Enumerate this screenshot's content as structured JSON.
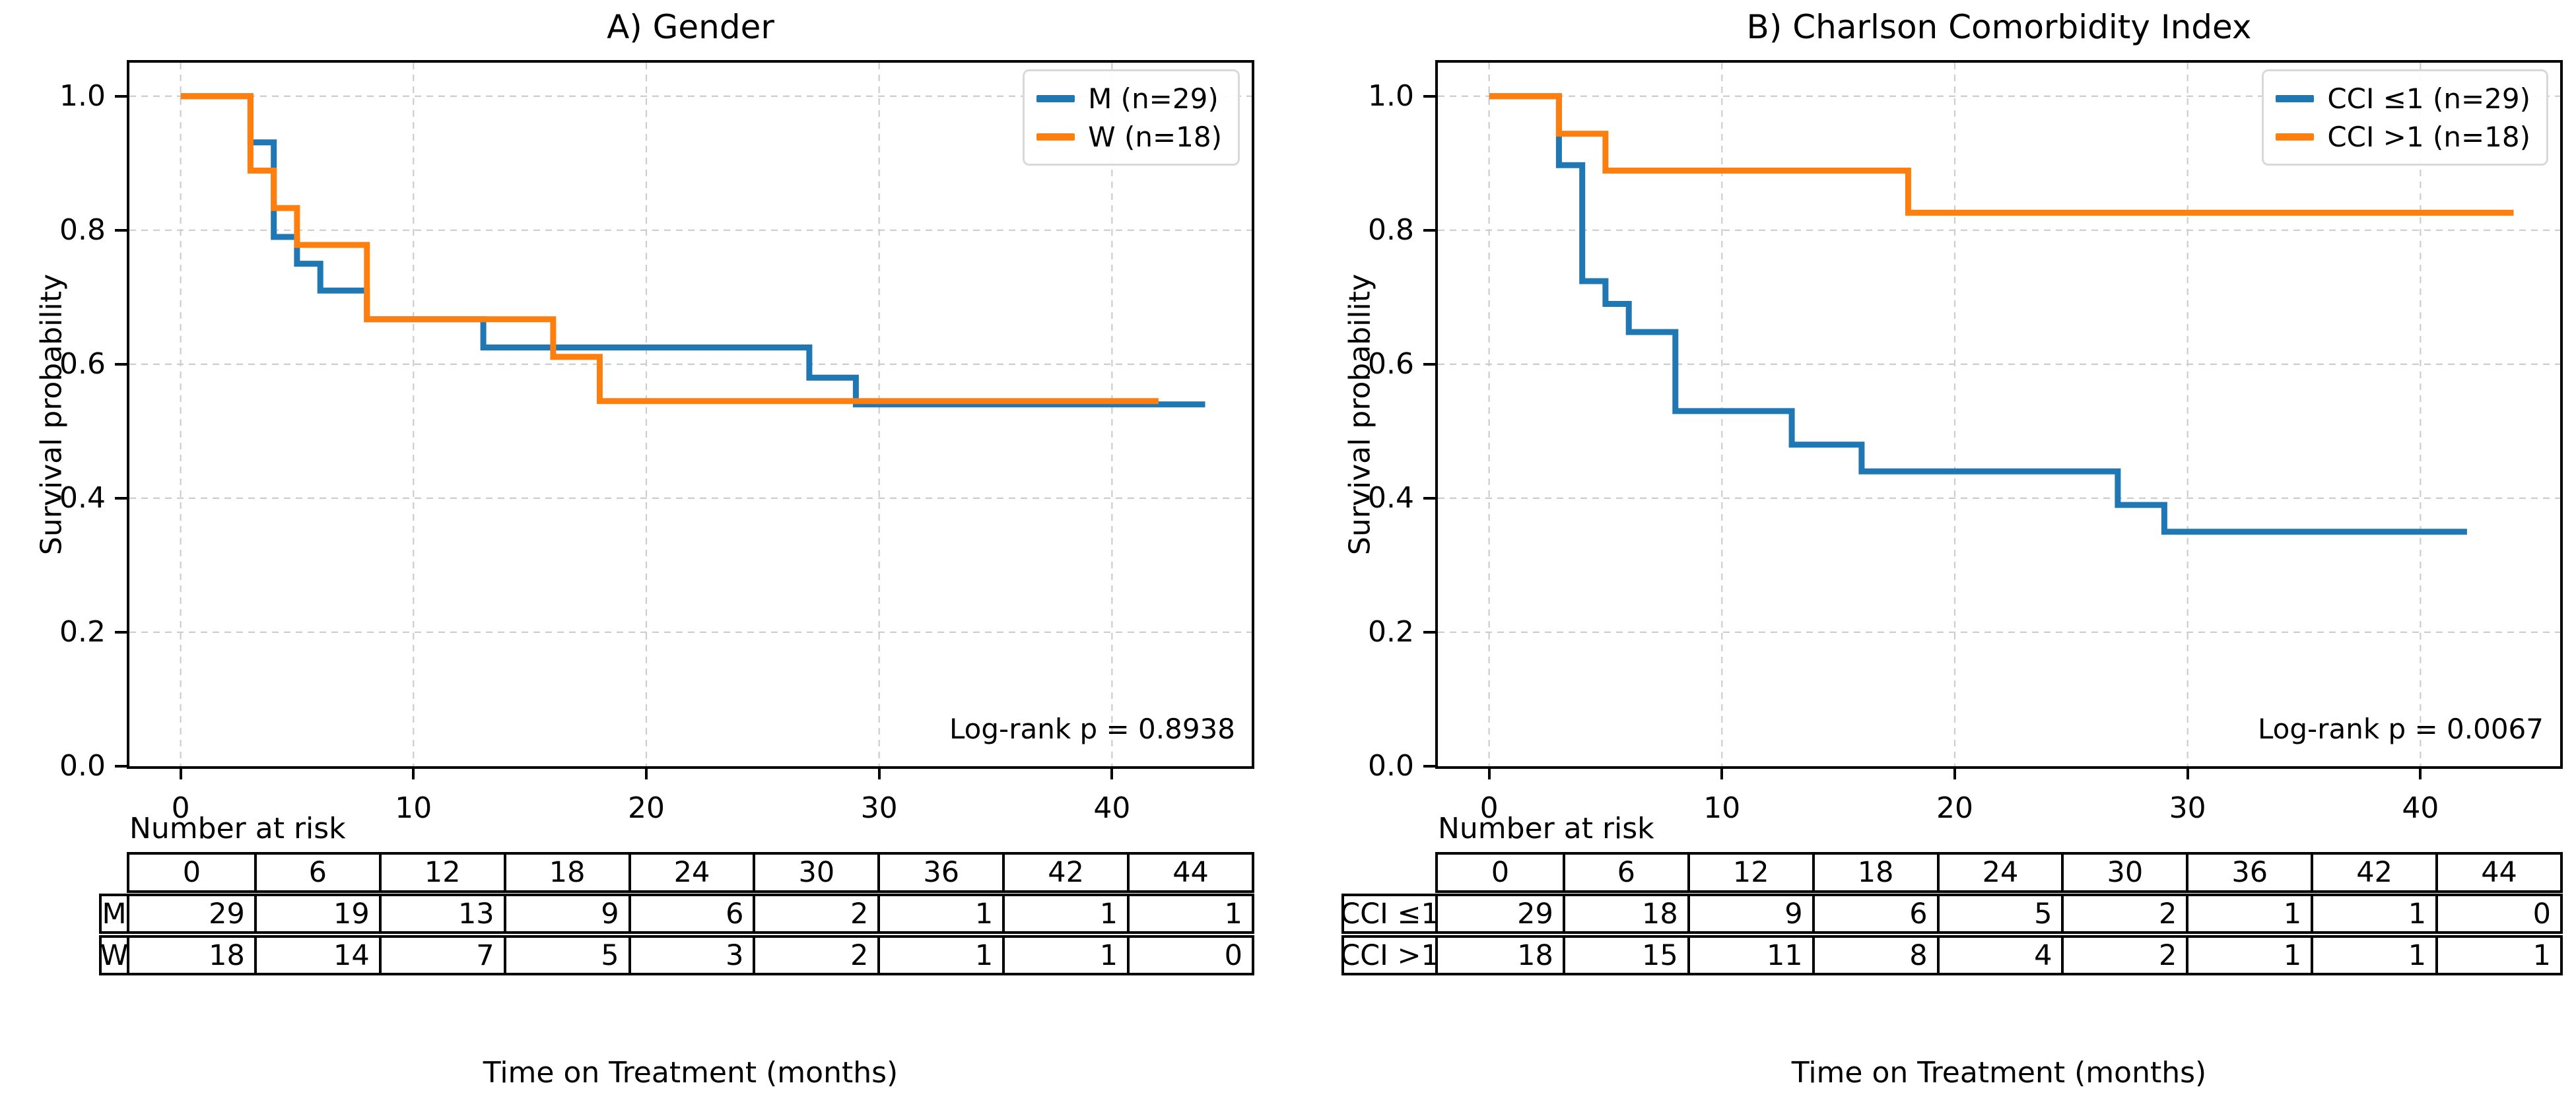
{
  "chart_data": [
    {
      "type": "line",
      "subtype": "kaplan-meier-step",
      "panel_label": "A",
      "title": "A) Gender",
      "xlabel": "Time on Treatment (months)",
      "ylabel": "Survival probability",
      "annotation": "Log-rank p = 0.8938",
      "grid": true,
      "legend_position": "upper right",
      "xlim": [
        -2.2,
        46.0
      ],
      "ylim": [
        0,
        1.05
      ],
      "x_ticks": [
        0,
        10,
        20,
        30,
        40
      ],
      "x_tick_labels": [
        "0",
        "10",
        "20",
        "30",
        "40"
      ],
      "y_ticks": [
        1.0,
        0.8,
        0.6,
        0.4,
        0.2,
        0.0
      ],
      "y_tick_labels": [
        "1.0",
        "0.8",
        "0.6",
        "0.4",
        "0.2",
        "0.0"
      ],
      "series": [
        {
          "name": "M (n=29)",
          "color": "#1f77b4",
          "steps": [
            [
              0,
              1.0
            ],
            [
              3,
              0.931
            ],
            [
              4,
              0.79
            ],
            [
              5,
              0.75
            ],
            [
              6,
              0.71
            ],
            [
              8,
              0.667
            ],
            [
              13,
              0.625
            ],
            [
              27,
              0.58
            ],
            [
              29,
              0.54
            ],
            [
              44,
              0.54
            ]
          ]
        },
        {
          "name": "W (n=18)",
          "color": "#ff7f0e",
          "steps": [
            [
              0,
              1.0
            ],
            [
              3,
              0.889
            ],
            [
              4,
              0.833
            ],
            [
              5,
              0.778
            ],
            [
              8,
              0.667
            ],
            [
              16,
              0.611
            ],
            [
              18,
              0.545
            ],
            [
              42,
              0.545
            ]
          ]
        }
      ],
      "number_at_risk": {
        "label": "Number at risk",
        "time_points": [
          "0",
          "6",
          "12",
          "18",
          "24",
          "30",
          "36",
          "42",
          "44"
        ],
        "rows": [
          {
            "label": "M",
            "counts": [
              "29",
              "19",
              "13",
              "9",
              "6",
              "2",
              "1",
              "1",
              "1"
            ]
          },
          {
            "label": "W",
            "counts": [
              "18",
              "14",
              "7",
              "5",
              "3",
              "2",
              "1",
              "1",
              "0"
            ]
          }
        ]
      }
    },
    {
      "type": "line",
      "subtype": "kaplan-meier-step",
      "panel_label": "B",
      "title": "B) Charlson Comorbidity Index",
      "xlabel": "Time on Treatment (months)",
      "ylabel": "Survival probability",
      "annotation": "Log-rank p = 0.0067",
      "grid": true,
      "legend_position": "upper right",
      "xlim": [
        -2.2,
        46.0
      ],
      "ylim": [
        0,
        1.05
      ],
      "x_ticks": [
        0,
        10,
        20,
        30,
        40
      ],
      "x_tick_labels": [
        "0",
        "10",
        "20",
        "30",
        "40"
      ],
      "y_ticks": [
        1.0,
        0.8,
        0.6,
        0.4,
        0.2,
        0.0
      ],
      "y_tick_labels": [
        "1.0",
        "0.8",
        "0.6",
        "0.4",
        "0.2",
        "0.0"
      ],
      "series": [
        {
          "name": "CCI ≤1 (n=29)",
          "color": "#1f77b4",
          "steps": [
            [
              0,
              1.0
            ],
            [
              3,
              0.897
            ],
            [
              4,
              0.724
            ],
            [
              5,
              0.69
            ],
            [
              6,
              0.648
            ],
            [
              8,
              0.53
            ],
            [
              13,
              0.48
            ],
            [
              16,
              0.44
            ],
            [
              27,
              0.39
            ],
            [
              29,
              0.35
            ],
            [
              42,
              0.35
            ]
          ]
        },
        {
          "name": "CCI >1 (n=18)",
          "color": "#ff7f0e",
          "steps": [
            [
              0,
              1.0
            ],
            [
              3,
              0.944
            ],
            [
              5,
              0.889
            ],
            [
              18,
              0.826
            ],
            [
              44,
              0.826
            ]
          ]
        }
      ],
      "number_at_risk": {
        "label": "Number at risk",
        "time_points": [
          "0",
          "6",
          "12",
          "18",
          "24",
          "30",
          "36",
          "42",
          "44"
        ],
        "rows": [
          {
            "label": "CCI ≤1",
            "counts": [
              "29",
              "18",
              "9",
              "6",
              "5",
              "2",
              "1",
              "1",
              "0"
            ]
          },
          {
            "label": "CCI >1",
            "counts": [
              "18",
              "15",
              "11",
              "8",
              "4",
              "2",
              "1",
              "1",
              "1"
            ]
          }
        ]
      }
    }
  ]
}
